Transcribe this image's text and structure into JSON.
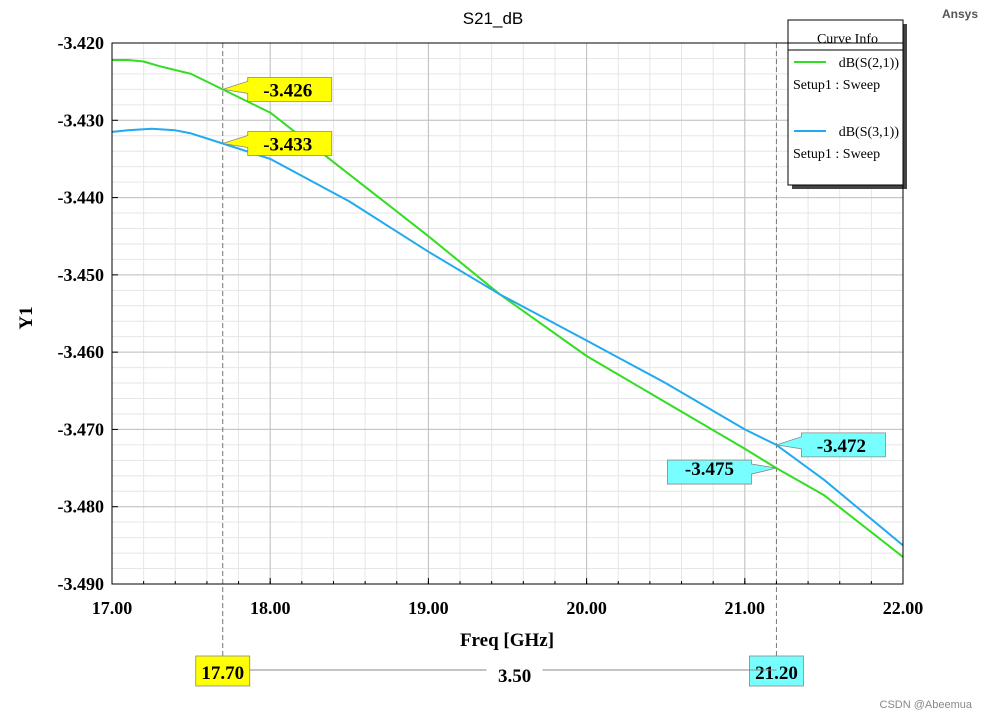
{
  "brand": "Ansys",
  "watermark": "CSDN @Abeemua",
  "colors": {
    "series1": "#33dd22",
    "series2": "#22aaee",
    "marker_yellow": "#ffff00",
    "marker_cyan": "#77ffff",
    "grid_major": "#c0c0c0",
    "grid_minor": "#e6e6e6"
  },
  "chart_data": {
    "type": "line",
    "title": "S21_dB",
    "xlabel": "Freq [GHz]",
    "ylabel": "Y1",
    "xlim": [
      17.0,
      22.0
    ],
    "ylim": [
      -3.49,
      -3.42
    ],
    "x_ticks": [
      "17.00",
      "18.00",
      "19.00",
      "20.00",
      "21.00",
      "22.00"
    ],
    "y_ticks": [
      "-3.420",
      "-3.430",
      "-3.440",
      "-3.450",
      "-3.460",
      "-3.470",
      "-3.480",
      "-3.490"
    ],
    "grid": true,
    "legend": {
      "title": "Curve Info",
      "placement": "top-right",
      "entries": [
        {
          "name": "dB(S(2,1))",
          "setup": "Setup1 : Sweep"
        },
        {
          "name": "dB(S(3,1))",
          "setup": "Setup1 : Sweep"
        }
      ]
    },
    "series": [
      {
        "name": "dB(S(2,1))",
        "x": [
          17.0,
          17.1,
          17.2,
          17.3,
          17.5,
          17.7,
          18.0,
          18.5,
          19.0,
          19.45,
          20.0,
          20.5,
          21.0,
          21.2,
          21.5,
          22.0
        ],
        "y": [
          -3.4222,
          -3.4222,
          -3.4224,
          -3.423,
          -3.424,
          -3.426,
          -3.429,
          -3.437,
          -3.445,
          -3.4525,
          -3.4605,
          -3.4665,
          -3.4725,
          -3.475,
          -3.4785,
          -3.4865
        ]
      },
      {
        "name": "dB(S(3,1))",
        "x": [
          17.0,
          17.1,
          17.25,
          17.4,
          17.5,
          17.7,
          18.0,
          18.5,
          19.0,
          19.45,
          20.0,
          20.5,
          21.0,
          21.2,
          21.5,
          22.0
        ],
        "y": [
          -3.4315,
          -3.4313,
          -3.4311,
          -3.4313,
          -3.4317,
          -3.433,
          -3.435,
          -3.4405,
          -3.447,
          -3.4525,
          -3.4585,
          -3.464,
          -3.47,
          -3.472,
          -3.4765,
          -3.485
        ]
      }
    ],
    "markers": [
      {
        "x": 17.7,
        "y": -3.426,
        "label": "-3.426",
        "color": "yellow"
      },
      {
        "x": 17.7,
        "y": -3.433,
        "label": "-3.433",
        "color": "yellow"
      },
      {
        "x": 21.2,
        "y": -3.472,
        "label": "-3.472",
        "color": "cyan"
      },
      {
        "x": 21.2,
        "y": -3.475,
        "label": "-3.475",
        "color": "cyan"
      }
    ],
    "x_markers": [
      {
        "x": 17.7,
        "label": "17.70",
        "color": "yellow"
      },
      {
        "x": 21.2,
        "label": "21.20",
        "color": "cyan"
      }
    ],
    "delta": {
      "label": "3.50"
    }
  }
}
